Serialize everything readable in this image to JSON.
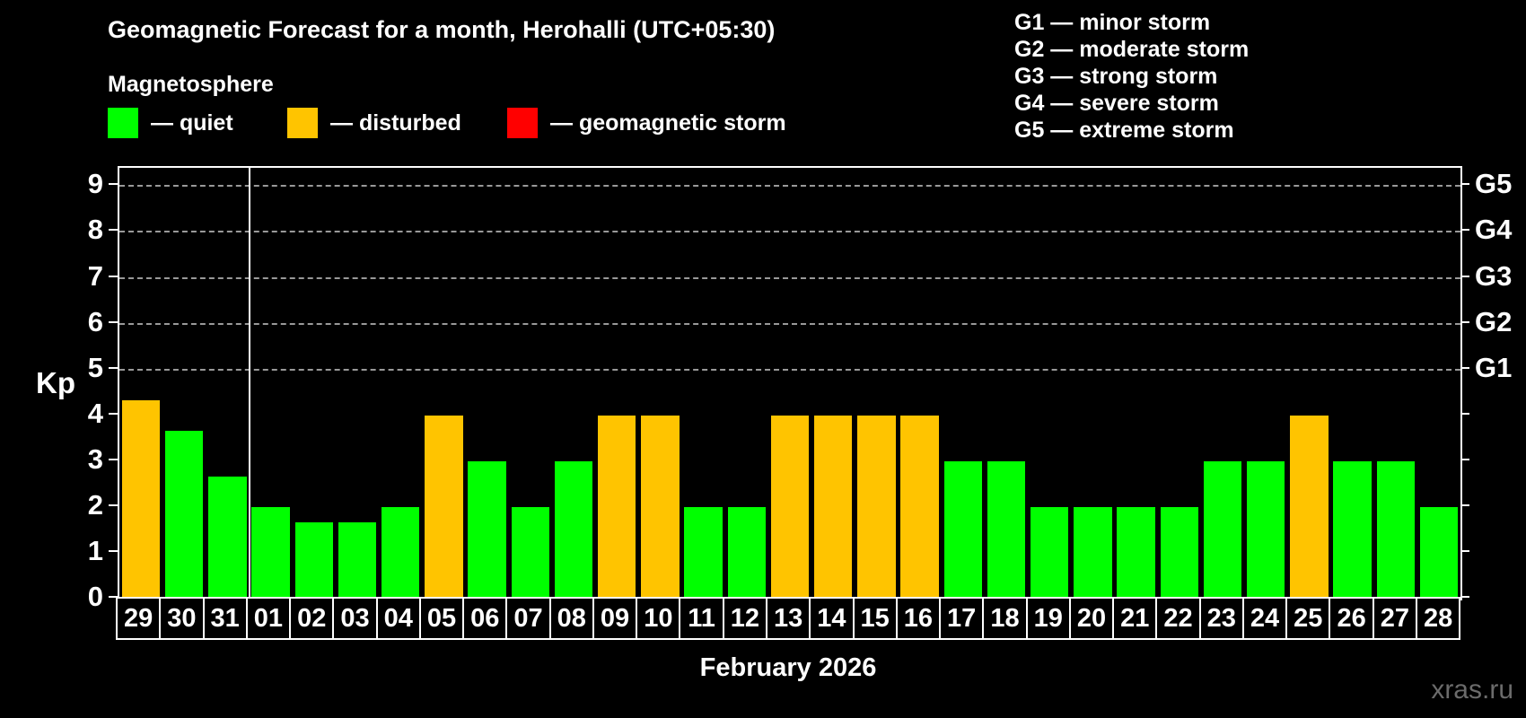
{
  "title": "Geomagnetic Forecast for a month, Herohalli (UTC+05:30)",
  "legend": {
    "heading": "Magnetosphere",
    "items": [
      {
        "status": "quiet",
        "label": "— quiet",
        "color": "#00ff00"
      },
      {
        "status": "disturbed",
        "label": "— disturbed",
        "color": "#ffc400"
      },
      {
        "status": "storm",
        "label": "— geomagnetic storm",
        "color": "#ff0000"
      }
    ]
  },
  "storm_scale_legend": [
    "G1 — minor storm",
    "G2 — moderate storm",
    "G3 — strong storm",
    "G4 — severe storm",
    "G5 — extreme storm"
  ],
  "watermark": "xras.ru",
  "chart_data": {
    "type": "bar",
    "title": "Geomagnetic Forecast for a month, Herohalli (UTC+05:30)",
    "ylabel": "Kp",
    "xlabel": "February 2026",
    "ylim": [
      0,
      9.4
    ],
    "yticks": [
      0,
      1,
      2,
      3,
      4,
      5,
      6,
      7,
      8,
      9
    ],
    "gridlines_at": [
      5,
      6,
      7,
      8,
      9
    ],
    "grid_style": "dashed",
    "right_axis_labels": [
      {
        "kp": 5,
        "label": "G1"
      },
      {
        "kp": 6,
        "label": "G2"
      },
      {
        "kp": 7,
        "label": "G3"
      },
      {
        "kp": 8,
        "label": "G4"
      },
      {
        "kp": 9,
        "label": "G5"
      }
    ],
    "month_separator_after_index": 2,
    "categories": [
      "29",
      "30",
      "31",
      "01",
      "02",
      "03",
      "04",
      "05",
      "06",
      "07",
      "08",
      "09",
      "10",
      "11",
      "12",
      "13",
      "14",
      "15",
      "16",
      "17",
      "18",
      "19",
      "20",
      "21",
      "22",
      "23",
      "24",
      "25",
      "26",
      "27",
      "28"
    ],
    "values": [
      4.33,
      3.67,
      2.67,
      2,
      1.67,
      1.67,
      2,
      4,
      3,
      2,
      3,
      4,
      4,
      2,
      2,
      4,
      4,
      4,
      4,
      3,
      3,
      2,
      2,
      2,
      2,
      3,
      3,
      4,
      3,
      3,
      2
    ],
    "statuses": [
      "disturbed",
      "quiet",
      "quiet",
      "quiet",
      "quiet",
      "quiet",
      "quiet",
      "disturbed",
      "quiet",
      "quiet",
      "quiet",
      "disturbed",
      "disturbed",
      "quiet",
      "quiet",
      "disturbed",
      "disturbed",
      "disturbed",
      "disturbed",
      "quiet",
      "quiet",
      "quiet",
      "quiet",
      "quiet",
      "quiet",
      "quiet",
      "quiet",
      "disturbed",
      "quiet",
      "quiet",
      "quiet"
    ]
  },
  "colors": {
    "background": "#000000",
    "text": "#ffffff",
    "axis": "#ffffff",
    "grid": "#999999",
    "quiet": "#00ff00",
    "disturbed": "#ffc400",
    "storm": "#ff0000",
    "watermark": "#6b6b6b"
  }
}
